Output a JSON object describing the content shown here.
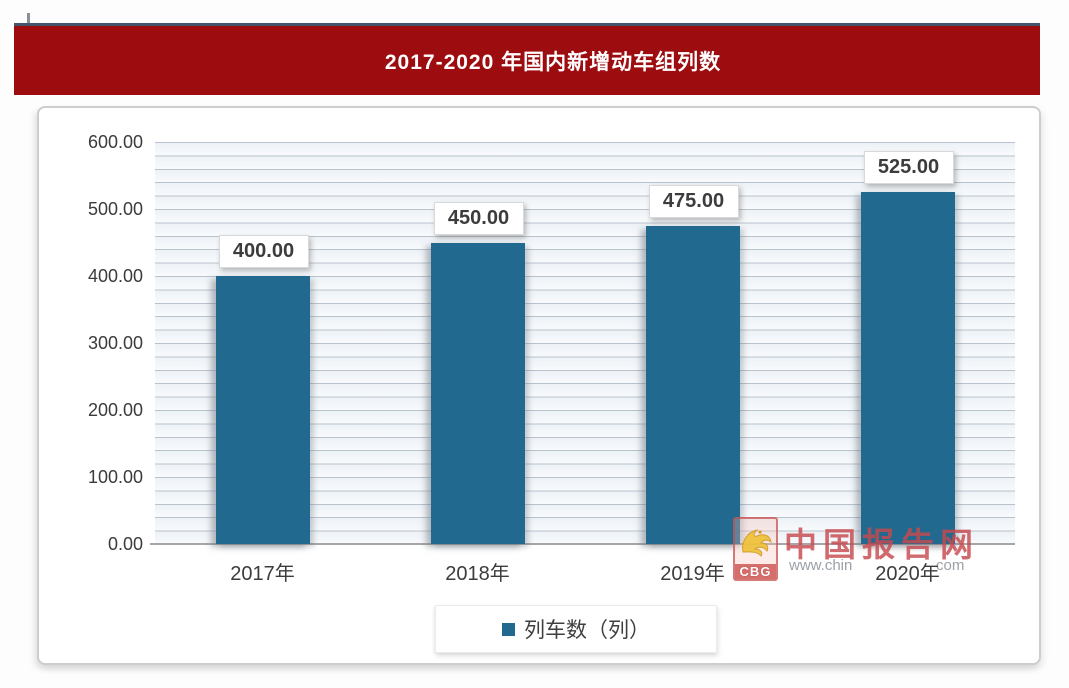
{
  "banner": {
    "title": "2017-2020 年国内新增动车组列数",
    "background": "#9d0d10",
    "accent_line_color": "#44546a",
    "text_color": "#ffffff"
  },
  "chart_data": {
    "type": "bar",
    "title": "2017-2020 年国内新增动车组列数",
    "categories": [
      "2017年",
      "2018年",
      "2019年",
      "2020年"
    ],
    "series": [
      {
        "name": "列车数（列）",
        "values": [
          400,
          450,
          475,
          525
        ]
      }
    ],
    "data_labels": [
      "400.00",
      "450.00",
      "475.00",
      "525.00"
    ],
    "y_axis": {
      "ticks": [
        "600.00",
        "500.00",
        "400.00",
        "300.00",
        "200.00",
        "100.00",
        "0.00"
      ],
      "min": 0,
      "max": 600,
      "tick_step": 100,
      "minor_grid_step": 20
    },
    "grid": "horizontal",
    "legend": {
      "label": "列车数（列）",
      "position": "bottom-center",
      "marker_color": "#21698e"
    },
    "colors": {
      "bar": "#21698e",
      "plot_background": "#edf2f7",
      "grid_line": "#b9c3cd",
      "axis_line": "#a6a6a6",
      "label_text": "#3c3c3c"
    }
  },
  "watermark": {
    "logo_text": "CBG",
    "site_name": "中国报告网",
    "url_prefix": "www.chin",
    "url_suffix": "com"
  }
}
